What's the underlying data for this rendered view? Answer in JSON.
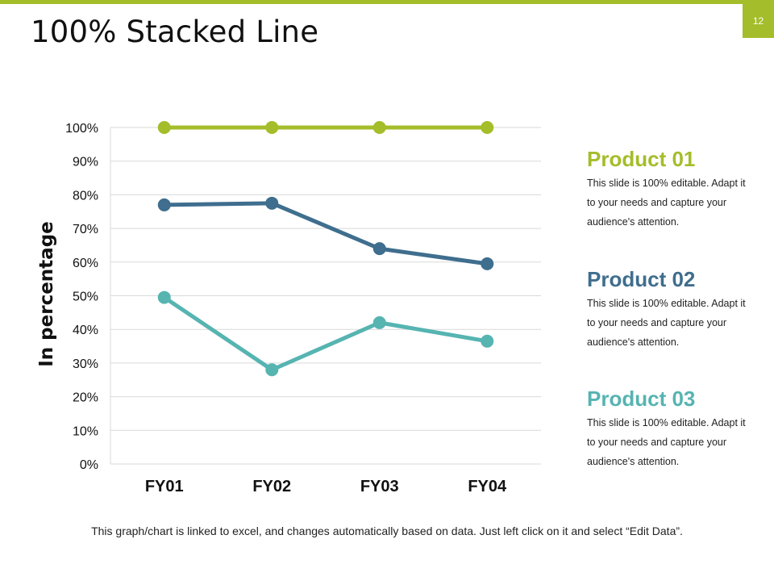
{
  "slide": {
    "title": "100% Stacked Line",
    "page_number": "12",
    "footer": "This graph/chart is linked to excel, and changes automatically based on data. Just left click on it and select “Edit Data”."
  },
  "colors": {
    "accent": "#a4bd2a",
    "product_01": "#a4bd2a",
    "product_02": "#3f6e8e",
    "product_03": "#56b4b1",
    "grid": "#d9d9d9"
  },
  "legend": [
    {
      "name": "Product 01",
      "description": "This slide is 100% editable. Adapt it to your needs and capture your audience's attention."
    },
    {
      "name": "Product 02",
      "description": "This slide is 100% editable. Adapt it to your needs and capture your audience's attention."
    },
    {
      "name": "Product 03",
      "description": "This slide is 100% editable. Adapt it to your needs and capture your audience's attention."
    }
  ],
  "chart_data": {
    "type": "line",
    "title": "",
    "xlabel": "",
    "ylabel": "In percentage",
    "categories": [
      "FY01",
      "FY02",
      "FY03",
      "FY04"
    ],
    "yticks": [
      "0%",
      "10%",
      "20%",
      "30%",
      "40%",
      "50%",
      "60%",
      "70%",
      "80%",
      "90%",
      "100%"
    ],
    "ylim": [
      0,
      100
    ],
    "grid": true,
    "series": [
      {
        "name": "Product 01",
        "values": [
          100,
          100,
          100,
          100
        ]
      },
      {
        "name": "Product 02",
        "values": [
          77,
          77.5,
          64,
          59.5
        ]
      },
      {
        "name": "Product 03",
        "values": [
          49.5,
          28,
          42,
          36.5
        ]
      }
    ]
  }
}
